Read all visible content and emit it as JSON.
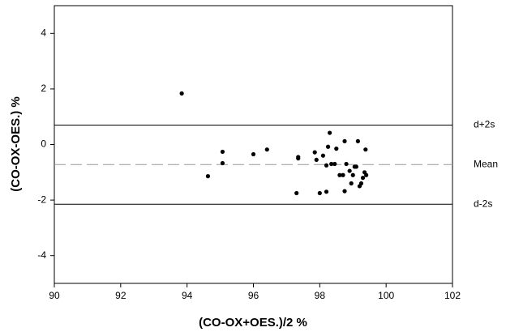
{
  "chart_data": {
    "type": "scatter",
    "x_label": "(CO-OX+OES.)/2 %",
    "y_label": "(CO-OX-OES.) %",
    "xlim": [
      90,
      102
    ],
    "ylim": [
      -5,
      5
    ],
    "xticks": [
      90,
      92,
      94,
      96,
      98,
      100,
      102
    ],
    "yticks": [
      -4,
      -2,
      0,
      2,
      4
    ],
    "color": "#000000",
    "x": [
      93.84,
      94.63,
      95.07,
      95.07,
      96.0,
      96.41,
      97.3,
      97.35,
      97.35,
      97.85,
      97.9,
      98.0,
      98.1,
      98.2,
      98.2,
      98.25,
      98.3,
      98.35,
      98.45,
      98.5,
      98.6,
      98.7,
      98.75,
      98.75,
      98.8,
      98.9,
      98.95,
      99.0,
      99.05,
      99.1,
      99.15,
      99.2,
      99.25,
      99.3,
      99.35,
      99.4,
      99.38
    ],
    "y": [
      1.84,
      -1.14,
      -0.26,
      -0.67,
      -0.35,
      -0.18,
      -1.75,
      -0.45,
      -0.5,
      -0.28,
      -0.55,
      -1.75,
      -0.4,
      -0.75,
      -1.7,
      -0.08,
      0.42,
      -0.7,
      -0.7,
      -0.15,
      -1.1,
      -1.1,
      0.12,
      -1.68,
      -0.7,
      -0.95,
      -1.4,
      -1.1,
      -0.8,
      -0.8,
      0.12,
      -1.5,
      -1.4,
      -1.2,
      -1.0,
      -1.1,
      -0.18
    ],
    "reference_lines": [
      {
        "label": "d+2s",
        "value": 0.7,
        "style": "solid"
      },
      {
        "label": "Mean",
        "value": -0.72,
        "style": "dashed"
      },
      {
        "label": "d-2s",
        "value": -2.15,
        "style": "solid"
      }
    ]
  }
}
